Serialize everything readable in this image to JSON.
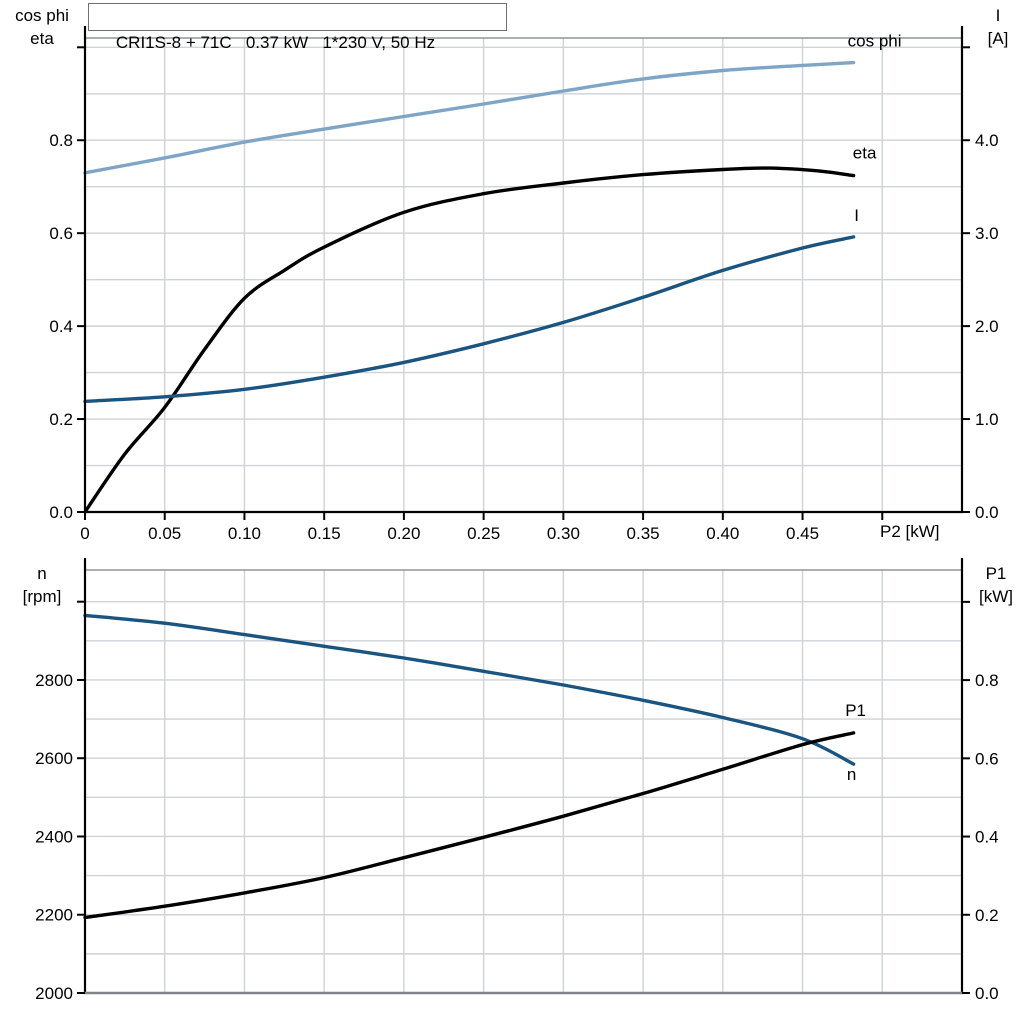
{
  "title_box": {
    "text": "CRI1S-8 + 71C   0.37 kW   1*230 V, 50 Hz"
  },
  "chart_data": [
    {
      "type": "line",
      "title": "Motor performance: cos phi, eta and current I versus shaft power P2",
      "legend_position": "inline-end-of-curve",
      "grid": true,
      "x_axis": {
        "label": "P2 [kW]",
        "range": [
          0,
          0.55
        ],
        "grid_step": 0.05,
        "ticks": [
          {
            "v": 0,
            "t": "0"
          },
          {
            "v": 0.05,
            "t": "0.05"
          },
          {
            "v": 0.1,
            "t": "0.10"
          },
          {
            "v": 0.15,
            "t": "0.15"
          },
          {
            "v": 0.2,
            "t": "0.20"
          },
          {
            "v": 0.25,
            "t": "0.25"
          },
          {
            "v": 0.3,
            "t": "0.30"
          },
          {
            "v": 0.35,
            "t": "0.35"
          },
          {
            "v": 0.4,
            "t": "0.40"
          },
          {
            "v": 0.45,
            "t": "0.45"
          },
          {
            "v": 0.5,
            "t": ""
          }
        ]
      },
      "left_axis": {
        "label_lines": [
          "cos phi",
          "eta"
        ],
        "range": [
          0,
          1.02
        ],
        "grid_step": 0.1,
        "ticks": [
          {
            "v": 0.0,
            "t": "0.0"
          },
          {
            "v": 0.2,
            "t": "0.2"
          },
          {
            "v": 0.4,
            "t": "0.4"
          },
          {
            "v": 0.6,
            "t": "0.6"
          },
          {
            "v": 0.8,
            "t": "0.8"
          },
          {
            "v": 1.0,
            "t": ""
          }
        ]
      },
      "right_axis": {
        "label_lines": [
          "I",
          "[A]"
        ],
        "range": [
          0,
          5.1
        ],
        "ticks": [
          {
            "v": 0.0,
            "t": "0.0"
          },
          {
            "v": 1.0,
            "t": "1.0"
          },
          {
            "v": 2.0,
            "t": "2.0"
          },
          {
            "v": 3.0,
            "t": "3.0"
          },
          {
            "v": 4.0,
            "t": "4.0"
          },
          {
            "v": 5.0,
            "t": ""
          }
        ]
      },
      "series": [
        {
          "name": "cos phi",
          "label": "cos phi",
          "axis": "left",
          "color": "#7fa5c6",
          "label_offset": [
            21,
            -16
          ],
          "points": [
            [
              0,
              0.73
            ],
            [
              0.05,
              0.762
            ],
            [
              0.1,
              0.796
            ],
            [
              0.15,
              0.824
            ],
            [
              0.2,
              0.851
            ],
            [
              0.25,
              0.878
            ],
            [
              0.3,
              0.906
            ],
            [
              0.35,
              0.932
            ],
            [
              0.4,
              0.95
            ],
            [
              0.45,
              0.961
            ],
            [
              0.482,
              0.967
            ]
          ]
        },
        {
          "name": "eta",
          "label": "eta",
          "axis": "left",
          "color": "#000000",
          "label_offset": [
            11,
            -17
          ],
          "points": [
            [
              0,
              0
            ],
            [
              0.025,
              0.125
            ],
            [
              0.05,
              0.225
            ],
            [
              0.075,
              0.35
            ],
            [
              0.1,
              0.46
            ],
            [
              0.125,
              0.52
            ],
            [
              0.15,
              0.57
            ],
            [
              0.2,
              0.645
            ],
            [
              0.25,
              0.685
            ],
            [
              0.3,
              0.708
            ],
            [
              0.35,
              0.726
            ],
            [
              0.4,
              0.737
            ],
            [
              0.43,
              0.74
            ],
            [
              0.46,
              0.734
            ],
            [
              0.482,
              0.724
            ]
          ]
        },
        {
          "name": "I",
          "label": "I",
          "axis": "right",
          "color": "#1a5480",
          "label_offset": [
            3,
            -16
          ],
          "points": [
            [
              0,
              1.19
            ],
            [
              0.05,
              1.24
            ],
            [
              0.1,
              1.32
            ],
            [
              0.15,
              1.45
            ],
            [
              0.2,
              1.61
            ],
            [
              0.25,
              1.81
            ],
            [
              0.3,
              2.04
            ],
            [
              0.35,
              2.31
            ],
            [
              0.4,
              2.6
            ],
            [
              0.45,
              2.84
            ],
            [
              0.482,
              2.96
            ]
          ]
        }
      ]
    },
    {
      "type": "line",
      "title": "Motor speed n and input power P1 versus shaft power P2",
      "legend_position": "inline-end-of-curve",
      "grid": true,
      "x_axis": {
        "label": "",
        "range": [
          0,
          0.55
        ],
        "grid_step": 0.05,
        "ticks": []
      },
      "left_axis": {
        "label_lines": [
          "n",
          "[rpm]"
        ],
        "range": [
          2000,
          3081
        ],
        "grid_step": 100,
        "ticks": [
          {
            "v": 2000,
            "t": "2000"
          },
          {
            "v": 2200,
            "t": "2200"
          },
          {
            "v": 2400,
            "t": "2400"
          },
          {
            "v": 2600,
            "t": "2600"
          },
          {
            "v": 2800,
            "t": "2800"
          },
          {
            "v": 3000,
            "t": ""
          }
        ]
      },
      "right_axis": {
        "label_lines": [
          "P1",
          "[kW]"
        ],
        "range": [
          0,
          1.0815
        ],
        "ticks": [
          {
            "v": 0.0,
            "t": "0.0"
          },
          {
            "v": 0.2,
            "t": "0.2"
          },
          {
            "v": 0.4,
            "t": "0.4"
          },
          {
            "v": 0.6,
            "t": "0.6"
          },
          {
            "v": 0.8,
            "t": "0.8"
          },
          {
            "v": 1.0,
            "t": ""
          }
        ]
      },
      "series": [
        {
          "name": "n",
          "label": "n",
          "axis": "left",
          "color": "#1a5480",
          "label_offset": [
            -2,
            16
          ],
          "points": [
            [
              0,
              2965
            ],
            [
              0.05,
              2945
            ],
            [
              0.1,
              2916
            ],
            [
              0.15,
              2886
            ],
            [
              0.2,
              2856
            ],
            [
              0.25,
              2822
            ],
            [
              0.3,
              2787
            ],
            [
              0.35,
              2748
            ],
            [
              0.4,
              2704
            ],
            [
              0.45,
              2650
            ],
            [
              0.482,
              2585
            ]
          ]
        },
        {
          "name": "P1",
          "label": "P1",
          "axis": "right",
          "color": "#000000",
          "label_offset": [
            2,
            -17
          ],
          "points": [
            [
              0,
              0.193
            ],
            [
              0.05,
              0.222
            ],
            [
              0.1,
              0.256
            ],
            [
              0.15,
              0.295
            ],
            [
              0.2,
              0.346
            ],
            [
              0.25,
              0.398
            ],
            [
              0.3,
              0.452
            ],
            [
              0.35,
              0.51
            ],
            [
              0.4,
              0.572
            ],
            [
              0.45,
              0.635
            ],
            [
              0.482,
              0.665
            ]
          ]
        }
      ]
    }
  ]
}
